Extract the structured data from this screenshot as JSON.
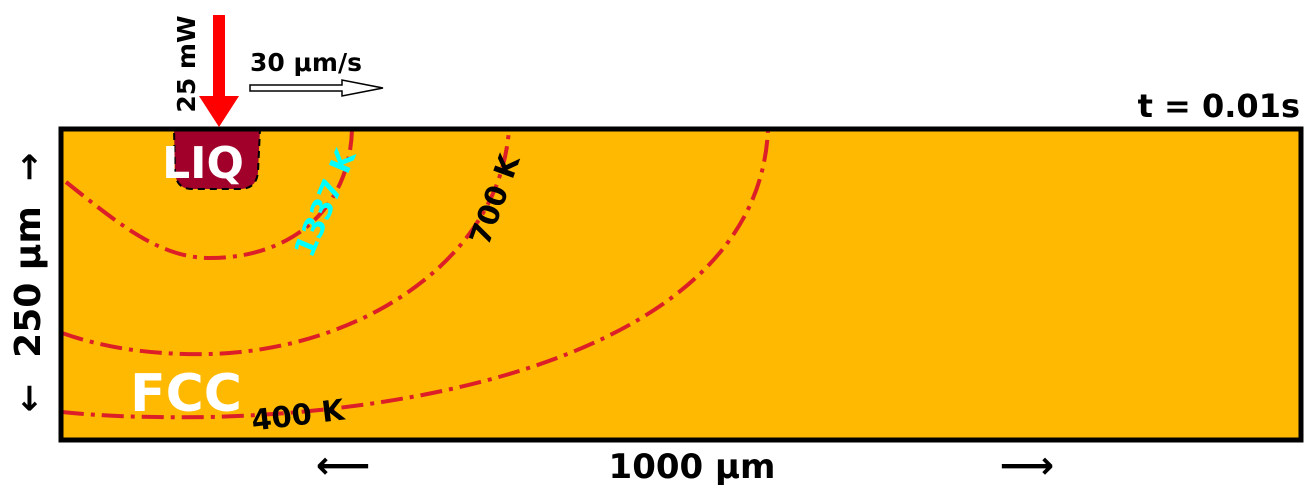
{
  "power_label": "25 mW",
  "speed_label": "30 μm/s",
  "time_label": "t = 0.01s",
  "phases": {
    "liquid": "LIQ",
    "solid": "FCC"
  },
  "isotherms": {
    "melt": "1337 K",
    "mid": "700 K",
    "outer": "400 K"
  },
  "dimensions": {
    "width": "1000 μm",
    "depth": "250 μm"
  },
  "arrows": {
    "left": "⟵",
    "right": "⟶",
    "up": "→",
    "down": "←"
  },
  "colors": {
    "solid_fill": "#FFB900",
    "liquid_fill": "#A0002A",
    "isotherm_line": "#DC1E28",
    "melt_label": "#00FFFF",
    "laser_arrow": "#FF0000",
    "frame": "#000000"
  }
}
